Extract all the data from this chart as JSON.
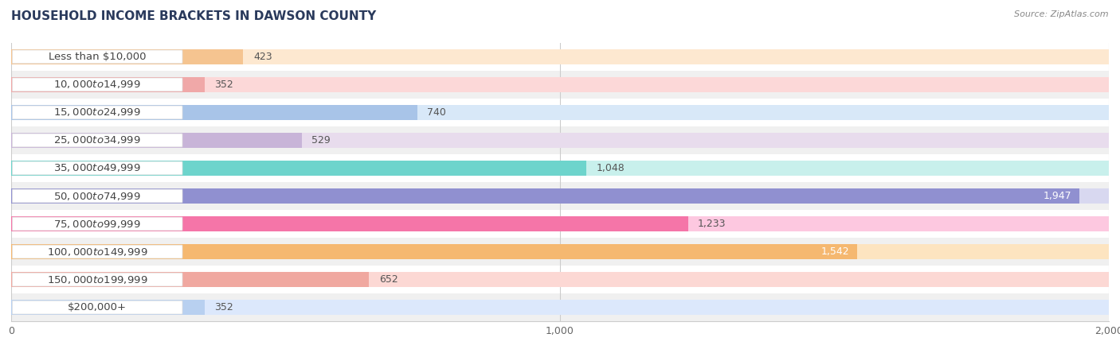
{
  "title": "HOUSEHOLD INCOME BRACKETS IN DAWSON COUNTY",
  "source": "Source: ZipAtlas.com",
  "categories": [
    "Less than $10,000",
    "$10,000 to $14,999",
    "$15,000 to $24,999",
    "$25,000 to $34,999",
    "$35,000 to $49,999",
    "$50,000 to $74,999",
    "$75,000 to $99,999",
    "$100,000 to $149,999",
    "$150,000 to $199,999",
    "$200,000+"
  ],
  "values": [
    423,
    352,
    740,
    529,
    1048,
    1947,
    1233,
    1542,
    652,
    352
  ],
  "bar_colors": [
    "#f5c490",
    "#f0a8a8",
    "#a8c4e8",
    "#c8b4d8",
    "#6dd4cc",
    "#9090d0",
    "#f575a8",
    "#f5b870",
    "#f0a8a0",
    "#b8d0f0"
  ],
  "bar_bg_colors": [
    "#fde8d0",
    "#fcd8d8",
    "#d8e8f8",
    "#e8dced",
    "#c8f0ec",
    "#d8d8f0",
    "#fdc8e0",
    "#fde4c0",
    "#fcd8d4",
    "#dce8fc"
  ],
  "xlim": [
    0,
    2000
  ],
  "xticks": [
    0,
    1000,
    2000
  ],
  "background_color": "#f5f5f5",
  "row_colors": [
    "#ffffff",
    "#f0f0f0"
  ],
  "title_fontsize": 11,
  "label_fontsize": 9.5,
  "value_fontsize": 9,
  "bar_height": 0.55,
  "value_threshold_inside": 1400
}
